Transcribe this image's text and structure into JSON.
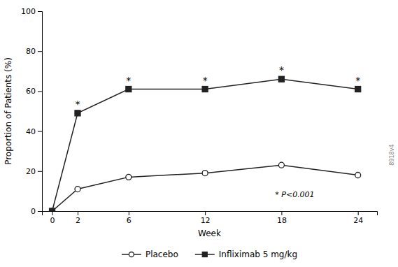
{
  "chart_data": {
    "type": "line",
    "xlabel": "Week",
    "ylabel": "Proportion of Patients (%)",
    "x": [
      0,
      2,
      6,
      12,
      18,
      24
    ],
    "xlim": [
      -0.8,
      25.5
    ],
    "xticks": [
      0,
      2,
      6,
      12,
      18,
      24
    ],
    "ylim": [
      0,
      100
    ],
    "yticks": [
      0,
      20,
      40,
      60,
      80,
      100
    ],
    "grid": false,
    "legend": "bottom",
    "series": [
      {
        "name": "Placebo",
        "color": "#222222",
        "marker": "circle-open",
        "values": [
          0,
          11,
          17,
          19,
          23,
          18
        ]
      },
      {
        "name": "Infliximab 5 mg/kg",
        "color": "#222222",
        "marker": "square",
        "values": [
          0,
          49,
          61,
          61,
          66,
          61
        ]
      }
    ],
    "annotations": [
      {
        "text": "*",
        "x": 2,
        "y": 49
      },
      {
        "text": "*",
        "x": 6,
        "y": 61
      },
      {
        "text": "*",
        "x": 12,
        "y": 61
      },
      {
        "text": "*",
        "x": 18,
        "y": 66
      },
      {
        "text": "*",
        "x": 24,
        "y": 61
      },
      {
        "text": "* P<0.001",
        "x": 17.5,
        "y": 7
      },
      {
        "text": "8918v4"
      }
    ]
  }
}
